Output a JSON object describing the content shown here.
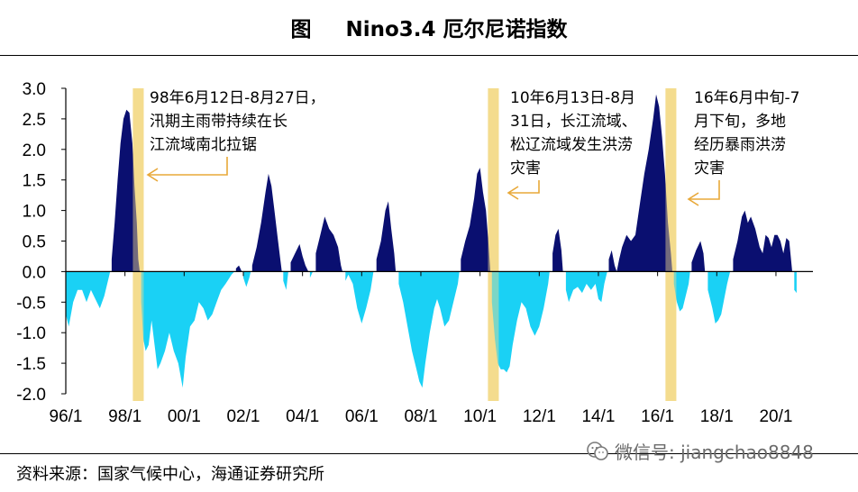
{
  "title": {
    "label": "图",
    "name": "Nino3.4 厄尔尼诺指数"
  },
  "source": "资料来源：国家气候中心，海通证券研究所",
  "watermark": "微信号: jiangchao8848",
  "colors": {
    "positive": "#0a0f70",
    "negative": "#1ad1f5",
    "highlight": "#f5dc8f",
    "arrow": "#e8a838",
    "axis": "#000000"
  },
  "chart_data": {
    "type": "area",
    "title": "Nino3.4 厄尔尼诺指数",
    "ylim": [
      -2.0,
      3.0
    ],
    "xlim": [
      1996.0,
      2021.25
    ],
    "y_ticks": [
      "3.0",
      "2.5",
      "2.0",
      "1.5",
      "1.0",
      "0.5",
      "0.0",
      "-0.5",
      "-1.0",
      "-1.5",
      "-2.0"
    ],
    "x_ticks": [
      "96/1",
      "98/1",
      "00/1",
      "02/1",
      "04/1",
      "06/1",
      "08/1",
      "10/1",
      "12/1",
      "14/1",
      "16/1",
      "18/1",
      "20/1"
    ],
    "series": [
      {
        "name": "Nino3.4",
        "points": [
          [
            1996.0,
            -0.7
          ],
          [
            1996.1,
            -0.9
          ],
          [
            1996.25,
            -0.5
          ],
          [
            1996.4,
            -0.3
          ],
          [
            1996.55,
            -0.3
          ],
          [
            1996.7,
            -0.5
          ],
          [
            1996.85,
            -0.3
          ],
          [
            1997.0,
            -0.45
          ],
          [
            1997.15,
            -0.6
          ],
          [
            1997.3,
            -0.4
          ],
          [
            1997.45,
            -0.1
          ],
          [
            1997.5,
            0.0
          ],
          [
            1997.55,
            0.2
          ],
          [
            1997.65,
            0.8
          ],
          [
            1997.75,
            1.5
          ],
          [
            1997.85,
            2.1
          ],
          [
            1997.95,
            2.5
          ],
          [
            1998.05,
            2.65
          ],
          [
            1998.15,
            2.6
          ],
          [
            1998.25,
            2.1
          ],
          [
            1998.32,
            1.4
          ],
          [
            1998.4,
            0.8
          ],
          [
            1998.45,
            0.2
          ],
          [
            1998.5,
            0.0
          ],
          [
            1998.55,
            -0.5
          ],
          [
            1998.62,
            -1.1
          ],
          [
            1998.7,
            -1.3
          ],
          [
            1998.8,
            -1.2
          ],
          [
            1998.9,
            -0.8
          ],
          [
            1999.0,
            -1.2
          ],
          [
            1999.1,
            -1.6
          ],
          [
            1999.2,
            -1.5
          ],
          [
            1999.35,
            -1.3
          ],
          [
            1999.5,
            -1.0
          ],
          [
            1999.65,
            -1.3
          ],
          [
            1999.8,
            -1.5
          ],
          [
            1999.95,
            -1.9
          ],
          [
            2000.05,
            -1.4
          ],
          [
            2000.2,
            -0.9
          ],
          [
            2000.35,
            -0.8
          ],
          [
            2000.5,
            -0.5
          ],
          [
            2000.65,
            -0.6
          ],
          [
            2000.8,
            -0.8
          ],
          [
            2000.95,
            -0.7
          ],
          [
            2001.1,
            -0.5
          ],
          [
            2001.25,
            -0.3
          ],
          [
            2001.4,
            -0.2
          ],
          [
            2001.6,
            -0.05
          ],
          [
            2001.7,
            0.0
          ],
          [
            2001.75,
            0.05
          ],
          [
            2001.85,
            0.1
          ],
          [
            2001.95,
            0.0
          ],
          [
            2002.0,
            -0.1
          ],
          [
            2002.1,
            -0.25
          ],
          [
            2002.2,
            -0.1
          ],
          [
            2002.25,
            0.0
          ],
          [
            2002.3,
            0.1
          ],
          [
            2002.45,
            0.4
          ],
          [
            2002.6,
            0.8
          ],
          [
            2002.75,
            1.3
          ],
          [
            2002.85,
            1.6
          ],
          [
            2002.95,
            1.4
          ],
          [
            2003.05,
            1.0
          ],
          [
            2003.15,
            0.6
          ],
          [
            2003.25,
            0.2
          ],
          [
            2003.3,
            0.0
          ],
          [
            2003.35,
            -0.15
          ],
          [
            2003.45,
            -0.3
          ],
          [
            2003.52,
            0.0
          ],
          [
            2003.6,
            0.15
          ],
          [
            2003.75,
            0.3
          ],
          [
            2003.9,
            0.45
          ],
          [
            2004.0,
            0.25
          ],
          [
            2004.1,
            0.1
          ],
          [
            2004.2,
            0.0
          ],
          [
            2004.25,
            -0.1
          ],
          [
            2004.35,
            0.0
          ],
          [
            2004.45,
            0.3
          ],
          [
            2004.6,
            0.6
          ],
          [
            2004.75,
            0.9
          ],
          [
            2004.9,
            0.7
          ],
          [
            2005.05,
            0.6
          ],
          [
            2005.2,
            0.4
          ],
          [
            2005.3,
            0.1
          ],
          [
            2005.35,
            0.0
          ],
          [
            2005.45,
            -0.15
          ],
          [
            2005.55,
            -0.05
          ],
          [
            2005.7,
            -0.2
          ],
          [
            2005.85,
            -0.6
          ],
          [
            2006.0,
            -0.85
          ],
          [
            2006.15,
            -0.6
          ],
          [
            2006.3,
            -0.3
          ],
          [
            2006.4,
            0.0
          ],
          [
            2006.5,
            0.2
          ],
          [
            2006.65,
            0.5
          ],
          [
            2006.8,
            1.0
          ],
          [
            2006.9,
            1.15
          ],
          [
            2007.0,
            0.7
          ],
          [
            2007.1,
            0.3
          ],
          [
            2007.15,
            0.0
          ],
          [
            2007.25,
            -0.2
          ],
          [
            2007.4,
            -0.5
          ],
          [
            2007.55,
            -0.9
          ],
          [
            2007.7,
            -1.3
          ],
          [
            2007.85,
            -1.6
          ],
          [
            2007.95,
            -1.8
          ],
          [
            2008.05,
            -1.9
          ],
          [
            2008.15,
            -1.5
          ],
          [
            2008.3,
            -1.0
          ],
          [
            2008.45,
            -0.6
          ],
          [
            2008.55,
            -0.45
          ],
          [
            2008.65,
            -0.6
          ],
          [
            2008.8,
            -0.9
          ],
          [
            2008.95,
            -0.8
          ],
          [
            2009.1,
            -0.5
          ],
          [
            2009.25,
            -0.2
          ],
          [
            2009.3,
            0.0
          ],
          [
            2009.35,
            0.2
          ],
          [
            2009.5,
            0.5
          ],
          [
            2009.65,
            0.75
          ],
          [
            2009.8,
            1.2
          ],
          [
            2009.9,
            1.6
          ],
          [
            2010.0,
            1.7
          ],
          [
            2010.1,
            1.3
          ],
          [
            2010.2,
            1.0
          ],
          [
            2010.28,
            0.5
          ],
          [
            2010.35,
            0.0
          ],
          [
            2010.4,
            -0.5
          ],
          [
            2010.5,
            -1.1
          ],
          [
            2010.6,
            -1.5
          ],
          [
            2010.7,
            -1.6
          ],
          [
            2010.8,
            -1.6
          ],
          [
            2010.9,
            -1.65
          ],
          [
            2011.0,
            -1.55
          ],
          [
            2011.1,
            -1.2
          ],
          [
            2011.25,
            -0.8
          ],
          [
            2011.4,
            -0.5
          ],
          [
            2011.55,
            -0.6
          ],
          [
            2011.7,
            -0.9
          ],
          [
            2011.85,
            -1.05
          ],
          [
            2012.0,
            -0.9
          ],
          [
            2012.15,
            -0.6
          ],
          [
            2012.3,
            -0.2
          ],
          [
            2012.35,
            0.0
          ],
          [
            2012.45,
            0.3
          ],
          [
            2012.55,
            0.6
          ],
          [
            2012.65,
            0.7
          ],
          [
            2012.75,
            0.35
          ],
          [
            2012.8,
            0.0
          ],
          [
            2012.9,
            -0.3
          ],
          [
            2013.0,
            -0.5
          ],
          [
            2013.15,
            -0.3
          ],
          [
            2013.3,
            -0.25
          ],
          [
            2013.45,
            -0.35
          ],
          [
            2013.6,
            -0.2
          ],
          [
            2013.75,
            -0.3
          ],
          [
            2013.9,
            -0.2
          ],
          [
            2014.0,
            -0.45
          ],
          [
            2014.1,
            -0.5
          ],
          [
            2014.2,
            -0.2
          ],
          [
            2014.3,
            0.0
          ],
          [
            2014.35,
            0.2
          ],
          [
            2014.45,
            0.35
          ],
          [
            2014.55,
            0.1
          ],
          [
            2014.62,
            0.0
          ],
          [
            2014.7,
            0.2
          ],
          [
            2014.8,
            0.4
          ],
          [
            2014.95,
            0.6
          ],
          [
            2015.1,
            0.5
          ],
          [
            2015.25,
            0.6
          ],
          [
            2015.4,
            1.1
          ],
          [
            2015.55,
            1.6
          ],
          [
            2015.7,
            2.0
          ],
          [
            2015.85,
            2.5
          ],
          [
            2015.95,
            2.9
          ],
          [
            2016.05,
            2.7
          ],
          [
            2016.15,
            2.2
          ],
          [
            2016.25,
            1.6
          ],
          [
            2016.35,
            0.8
          ],
          [
            2016.45,
            0.3
          ],
          [
            2016.5,
            0.0
          ],
          [
            2016.55,
            -0.2
          ],
          [
            2016.65,
            -0.5
          ],
          [
            2016.75,
            -0.65
          ],
          [
            2016.85,
            -0.6
          ],
          [
            2016.95,
            -0.4
          ],
          [
            2017.05,
            -0.2
          ],
          [
            2017.1,
            0.0
          ],
          [
            2017.15,
            0.15
          ],
          [
            2017.3,
            0.35
          ],
          [
            2017.45,
            0.5
          ],
          [
            2017.55,
            0.3
          ],
          [
            2017.6,
            0.0
          ],
          [
            2017.7,
            -0.3
          ],
          [
            2017.85,
            -0.6
          ],
          [
            2017.95,
            -0.85
          ],
          [
            2018.05,
            -0.8
          ],
          [
            2018.15,
            -0.7
          ],
          [
            2018.25,
            -0.45
          ],
          [
            2018.35,
            -0.2
          ],
          [
            2018.45,
            0.0
          ],
          [
            2018.55,
            0.2
          ],
          [
            2018.7,
            0.5
          ],
          [
            2018.85,
            0.9
          ],
          [
            2018.95,
            1.0
          ],
          [
            2019.05,
            0.8
          ],
          [
            2019.15,
            0.9
          ],
          [
            2019.3,
            0.7
          ],
          [
            2019.45,
            0.4
          ],
          [
            2019.55,
            0.3
          ],
          [
            2019.65,
            0.6
          ],
          [
            2019.75,
            0.55
          ],
          [
            2019.85,
            0.4
          ],
          [
            2019.95,
            0.6
          ],
          [
            2020.05,
            0.6
          ],
          [
            2020.15,
            0.5
          ],
          [
            2020.25,
            0.3
          ],
          [
            2020.35,
            0.55
          ],
          [
            2020.45,
            0.5
          ],
          [
            2020.55,
            0.0
          ],
          [
            2020.62,
            -0.3
          ],
          [
            2020.7,
            -0.35
          ]
        ]
      }
    ],
    "highlights": [
      {
        "x": 1998.45
      },
      {
        "x": 2010.45
      },
      {
        "x": 2016.45
      }
    ],
    "annotations": [
      {
        "lines": [
          "98年6月12日-8月27日，",
          "汛期主雨带持续在长",
          "江流域南北拉锯"
        ]
      },
      {
        "lines": [
          "10年6月13日-8月",
          "31日，长江流域、",
          "松辽流域发生洪涝",
          "灾害"
        ]
      },
      {
        "lines": [
          "16年6月中旬-7",
          "月下旬，多地",
          "经历暴雨洪涝",
          "灾害"
        ]
      }
    ]
  }
}
